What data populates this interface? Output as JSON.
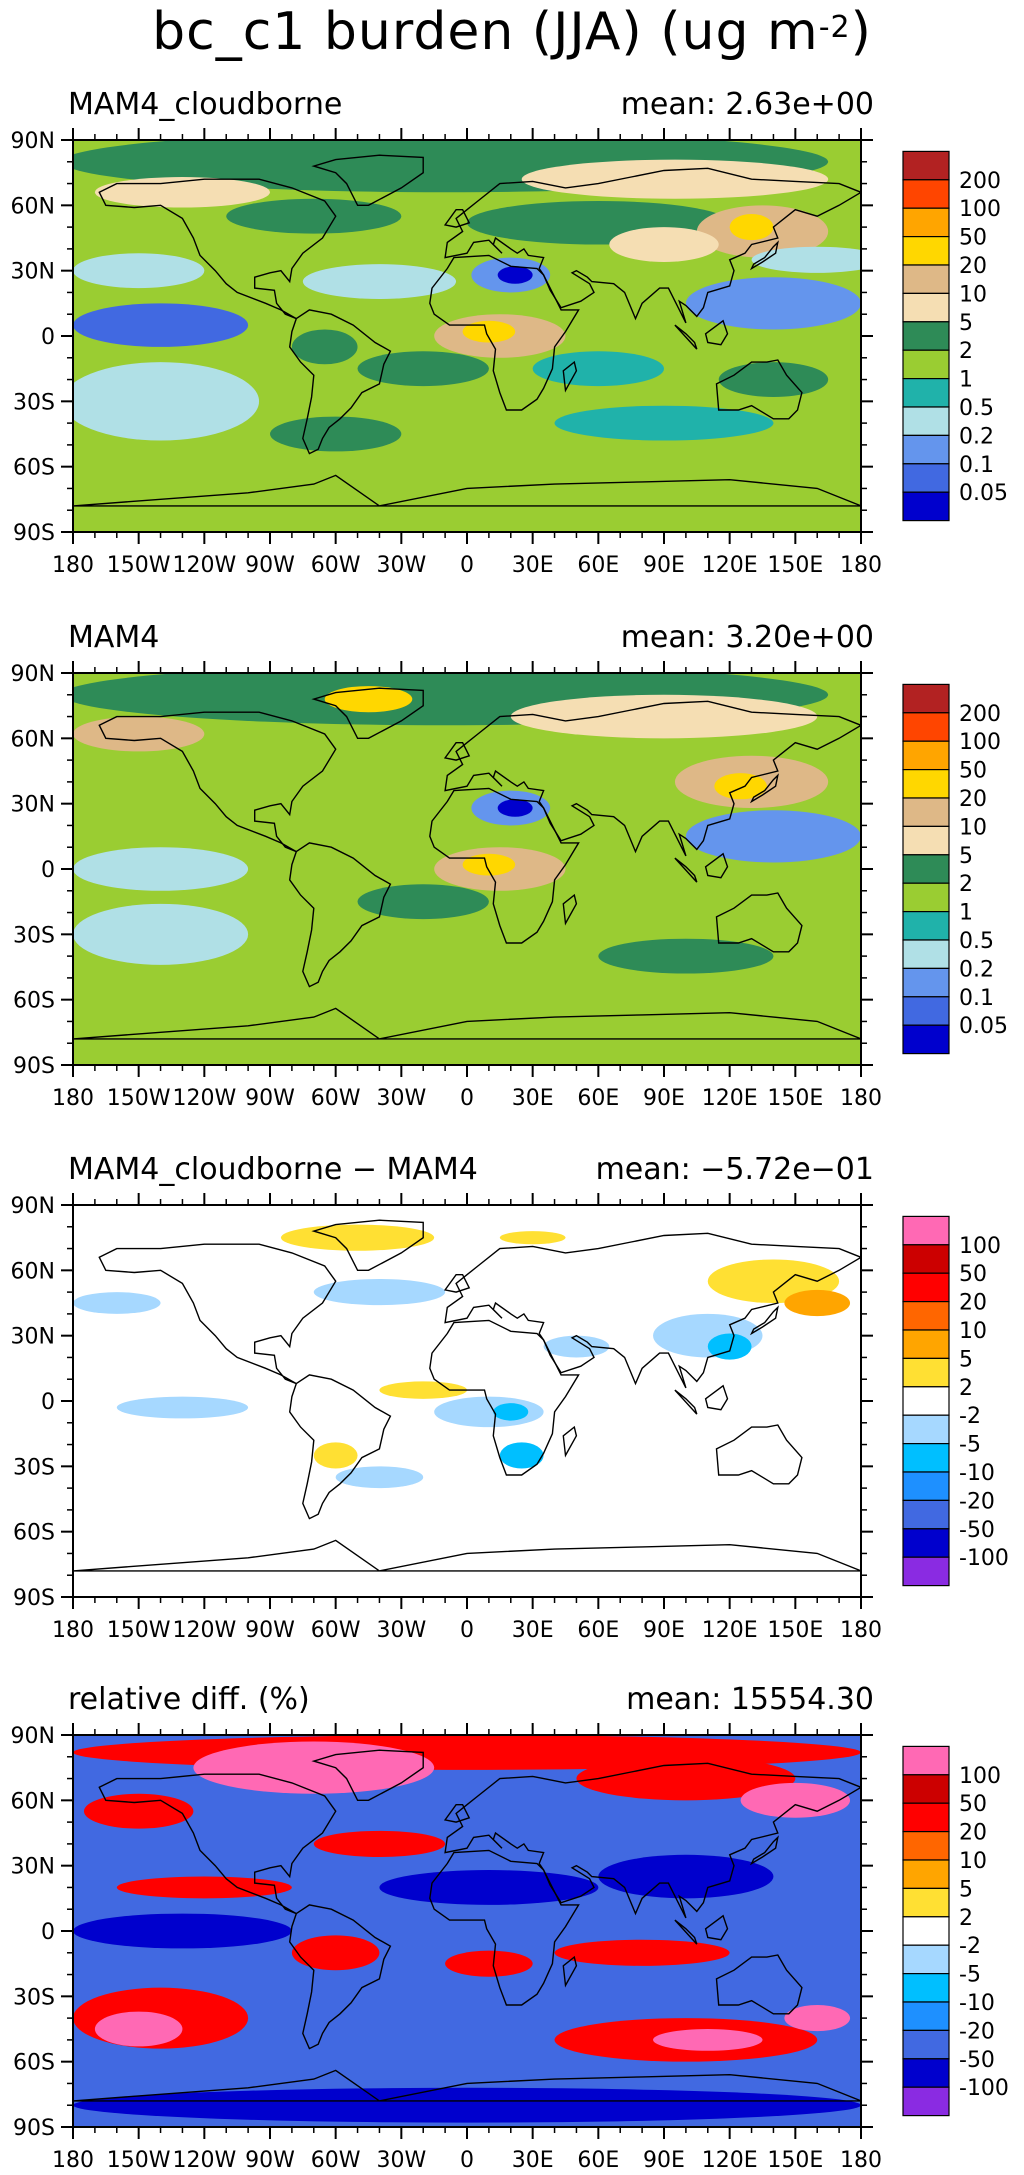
{
  "title": {
    "main": "bc_c1 burden (JJA) (ug m",
    "exponent": "-2",
    "close": ")"
  },
  "axes": {
    "lat_ticks": [
      "90N",
      "60N",
      "30N",
      "0",
      "30S",
      "60S",
      "90S"
    ],
    "lat_values": [
      90,
      60,
      30,
      0,
      -30,
      -60,
      -90
    ],
    "lon_ticks": [
      "180",
      "150W",
      "120W",
      "90W",
      "60W",
      "30W",
      "0",
      "30E",
      "60E",
      "90E",
      "120E",
      "150E",
      "180"
    ],
    "lon_values": [
      -180,
      -150,
      -120,
      -90,
      -60,
      -30,
      0,
      30,
      60,
      90,
      120,
      150,
      180
    ]
  },
  "colorbars": {
    "burden": {
      "labels": [
        "200",
        "100",
        "50",
        "20",
        "10",
        "5",
        "2",
        "1",
        "0.5",
        "0.2",
        "0.1",
        "0.05"
      ],
      "colors": [
        "#b22222",
        "#ff4500",
        "#ffa500",
        "#ffd700",
        "#deb887",
        "#f5deb3",
        "#2e8b57",
        "#9acd32",
        "#20b2aa",
        "#b0e0e6",
        "#6495ed",
        "#4169e1",
        "#0000cd"
      ]
    },
    "difference": {
      "labels": [
        "100",
        "50",
        "20",
        "10",
        "5",
        "2",
        "-2",
        "-5",
        "-10",
        "-20",
        "-50",
        "-100"
      ],
      "colors": [
        "#ff69b4",
        "#cc0000",
        "#ff0000",
        "#ff6600",
        "#ffa500",
        "#ffe033",
        "#ffffff",
        "#a6d8ff",
        "#00bfff",
        "#1e90ff",
        "#4169e1",
        "#0000cd",
        "#8a2be2"
      ]
    }
  },
  "panels": [
    {
      "label": "MAM4_cloudborne",
      "mean_label": "mean: 2.63e+00",
      "mean_value": 2.63,
      "colorbar": "burden",
      "background": "#9acd32",
      "blobs": [
        {
          "lon": -10,
          "lat": 80,
          "rx": 175,
          "ry": 14,
          "c": "#2e8b57"
        },
        {
          "lon": 95,
          "lat": 72,
          "rx": 70,
          "ry": 9,
          "c": "#f5deb3"
        },
        {
          "lon": -130,
          "lat": 66,
          "rx": 40,
          "ry": 7,
          "c": "#f5deb3"
        },
        {
          "lon": -70,
          "lat": 55,
          "rx": 40,
          "ry": 8,
          "c": "#2e8b57"
        },
        {
          "lon": 60,
          "lat": 52,
          "rx": 60,
          "ry": 10,
          "c": "#2e8b57"
        },
        {
          "lon": 135,
          "lat": 48,
          "rx": 30,
          "ry": 12,
          "c": "#deb887"
        },
        {
          "lon": 130,
          "lat": 50,
          "rx": 10,
          "ry": 6,
          "c": "#ffd700"
        },
        {
          "lon": 90,
          "lat": 42,
          "rx": 25,
          "ry": 8,
          "c": "#f5deb3"
        },
        {
          "lon": 160,
          "lat": 35,
          "rx": 30,
          "ry": 6,
          "c": "#b0e0e6"
        },
        {
          "lon": -150,
          "lat": 30,
          "rx": 30,
          "ry": 8,
          "c": "#b0e0e6"
        },
        {
          "lon": -40,
          "lat": 25,
          "rx": 35,
          "ry": 8,
          "c": "#b0e0e6"
        },
        {
          "lon": 20,
          "lat": 28,
          "rx": 18,
          "ry": 8,
          "c": "#6495ed"
        },
        {
          "lon": 22,
          "lat": 28,
          "rx": 8,
          "ry": 4,
          "c": "#0000cd"
        },
        {
          "lon": 140,
          "lat": 15,
          "rx": 40,
          "ry": 12,
          "c": "#6495ed"
        },
        {
          "lon": -140,
          "lat": 5,
          "rx": 40,
          "ry": 10,
          "c": "#4169e1"
        },
        {
          "lon": 15,
          "lat": 0,
          "rx": 30,
          "ry": 10,
          "c": "#deb887"
        },
        {
          "lon": 10,
          "lat": 2,
          "rx": 12,
          "ry": 5,
          "c": "#ffd700"
        },
        {
          "lon": -65,
          "lat": -5,
          "rx": 15,
          "ry": 8,
          "c": "#2e8b57"
        },
        {
          "lon": -20,
          "lat": -15,
          "rx": 30,
          "ry": 8,
          "c": "#2e8b57"
        },
        {
          "lon": 60,
          "lat": -15,
          "rx": 30,
          "ry": 8,
          "c": "#20b2aa"
        },
        {
          "lon": 140,
          "lat": -20,
          "rx": 25,
          "ry": 8,
          "c": "#2e8b57"
        },
        {
          "lon": -140,
          "lat": -30,
          "rx": 45,
          "ry": 18,
          "c": "#b0e0e6"
        },
        {
          "lon": 90,
          "lat": -40,
          "rx": 50,
          "ry": 8,
          "c": "#20b2aa"
        },
        {
          "lon": -60,
          "lat": -45,
          "rx": 30,
          "ry": 8,
          "c": "#2e8b57"
        }
      ]
    },
    {
      "label": "MAM4",
      "mean_label": "mean: 3.20e+00",
      "mean_value": 3.2,
      "colorbar": "burden",
      "background": "#9acd32",
      "blobs": [
        {
          "lon": -10,
          "lat": 80,
          "rx": 175,
          "ry": 14,
          "c": "#2e8b57"
        },
        {
          "lon": -45,
          "lat": 78,
          "rx": 20,
          "ry": 6,
          "c": "#ffd700"
        },
        {
          "lon": 90,
          "lat": 70,
          "rx": 70,
          "ry": 10,
          "c": "#f5deb3"
        },
        {
          "lon": -150,
          "lat": 62,
          "rx": 30,
          "ry": 8,
          "c": "#deb887"
        },
        {
          "lon": 130,
          "lat": 40,
          "rx": 35,
          "ry": 12,
          "c": "#deb887"
        },
        {
          "lon": 125,
          "lat": 38,
          "rx": 12,
          "ry": 6,
          "c": "#ffd700"
        },
        {
          "lon": 20,
          "lat": 28,
          "rx": 18,
          "ry": 8,
          "c": "#6495ed"
        },
        {
          "lon": 22,
          "lat": 28,
          "rx": 8,
          "ry": 4,
          "c": "#0000cd"
        },
        {
          "lon": 140,
          "lat": 15,
          "rx": 40,
          "ry": 12,
          "c": "#6495ed"
        },
        {
          "lon": -140,
          "lat": 0,
          "rx": 40,
          "ry": 10,
          "c": "#b0e0e6"
        },
        {
          "lon": 15,
          "lat": 0,
          "rx": 30,
          "ry": 10,
          "c": "#deb887"
        },
        {
          "lon": 10,
          "lat": 2,
          "rx": 12,
          "ry": 5,
          "c": "#ffd700"
        },
        {
          "lon": -20,
          "lat": -15,
          "rx": 30,
          "ry": 8,
          "c": "#2e8b57"
        },
        {
          "lon": -140,
          "lat": -30,
          "rx": 40,
          "ry": 14,
          "c": "#b0e0e6"
        },
        {
          "lon": 100,
          "lat": -40,
          "rx": 40,
          "ry": 8,
          "c": "#2e8b57"
        }
      ]
    },
    {
      "label": "MAM4_cloudborne − MAM4",
      "mean_label": "mean: −5.72e−01",
      "mean_value": -0.572,
      "colorbar": "difference",
      "background": "#ffffff",
      "blobs": [
        {
          "lon": -50,
          "lat": 75,
          "rx": 35,
          "ry": 6,
          "c": "#ffe033"
        },
        {
          "lon": 30,
          "lat": 75,
          "rx": 15,
          "ry": 3,
          "c": "#ffe033"
        },
        {
          "lon": 140,
          "lat": 55,
          "rx": 30,
          "ry": 10,
          "c": "#ffe033"
        },
        {
          "lon": 160,
          "lat": 45,
          "rx": 15,
          "ry": 6,
          "c": "#ffa500"
        },
        {
          "lon": -160,
          "lat": 45,
          "rx": 20,
          "ry": 5,
          "c": "#a6d8ff"
        },
        {
          "lon": -40,
          "lat": 50,
          "rx": 30,
          "ry": 6,
          "c": "#a6d8ff"
        },
        {
          "lon": 110,
          "lat": 30,
          "rx": 25,
          "ry": 10,
          "c": "#a6d8ff"
        },
        {
          "lon": 120,
          "lat": 25,
          "rx": 10,
          "ry": 6,
          "c": "#00bfff"
        },
        {
          "lon": 50,
          "lat": 25,
          "rx": 15,
          "ry": 5,
          "c": "#a6d8ff"
        },
        {
          "lon": -20,
          "lat": 5,
          "rx": 20,
          "ry": 4,
          "c": "#ffe033"
        },
        {
          "lon": 10,
          "lat": -5,
          "rx": 25,
          "ry": 7,
          "c": "#a6d8ff"
        },
        {
          "lon": 20,
          "lat": -5,
          "rx": 8,
          "ry": 4,
          "c": "#00bfff"
        },
        {
          "lon": -130,
          "lat": -3,
          "rx": 30,
          "ry": 5,
          "c": "#a6d8ff"
        },
        {
          "lon": -60,
          "lat": -25,
          "rx": 10,
          "ry": 6,
          "c": "#ffe033"
        },
        {
          "lon": -40,
          "lat": -35,
          "rx": 20,
          "ry": 5,
          "c": "#a6d8ff"
        },
        {
          "lon": 25,
          "lat": -25,
          "rx": 10,
          "ry": 6,
          "c": "#00bfff"
        }
      ]
    },
    {
      "label": "relative diff. (%)",
      "mean_label": "mean: 15554.30",
      "mean_value": 15554.3,
      "colorbar": "difference",
      "background": "#4169e1",
      "blobs": [
        {
          "lon": 0,
          "lat": 82,
          "rx": 180,
          "ry": 8,
          "c": "#ff0000"
        },
        {
          "lon": -70,
          "lat": 75,
          "rx": 55,
          "ry": 12,
          "c": "#ff69b4"
        },
        {
          "lon": 100,
          "lat": 70,
          "rx": 50,
          "ry": 10,
          "c": "#ff0000"
        },
        {
          "lon": 150,
          "lat": 60,
          "rx": 25,
          "ry": 8,
          "c": "#ff69b4"
        },
        {
          "lon": -150,
          "lat": 55,
          "rx": 25,
          "ry": 8,
          "c": "#ff0000"
        },
        {
          "lon": -40,
          "lat": 40,
          "rx": 30,
          "ry": 6,
          "c": "#ff0000"
        },
        {
          "lon": 10,
          "lat": 20,
          "rx": 50,
          "ry": 8,
          "c": "#0000cd"
        },
        {
          "lon": 100,
          "lat": 25,
          "rx": 40,
          "ry": 10,
          "c": "#0000cd"
        },
        {
          "lon": -120,
          "lat": 20,
          "rx": 40,
          "ry": 5,
          "c": "#ff0000"
        },
        {
          "lon": -130,
          "lat": 0,
          "rx": 50,
          "ry": 8,
          "c": "#0000cd"
        },
        {
          "lon": -60,
          "lat": -10,
          "rx": 20,
          "ry": 8,
          "c": "#ff0000"
        },
        {
          "lon": 10,
          "lat": -15,
          "rx": 20,
          "ry": 6,
          "c": "#ff0000"
        },
        {
          "lon": 80,
          "lat": -10,
          "rx": 40,
          "ry": 6,
          "c": "#ff0000"
        },
        {
          "lon": -140,
          "lat": -40,
          "rx": 40,
          "ry": 14,
          "c": "#ff0000"
        },
        {
          "lon": -150,
          "lat": -45,
          "rx": 20,
          "ry": 8,
          "c": "#ff69b4"
        },
        {
          "lon": 100,
          "lat": -50,
          "rx": 60,
          "ry": 10,
          "c": "#ff0000"
        },
        {
          "lon": 110,
          "lat": -50,
          "rx": 25,
          "ry": 5,
          "c": "#ff69b4"
        },
        {
          "lon": 160,
          "lat": -40,
          "rx": 15,
          "ry": 6,
          "c": "#ff69b4"
        },
        {
          "lon": 0,
          "lat": -80,
          "rx": 180,
          "ry": 8,
          "c": "#0000cd"
        }
      ]
    }
  ]
}
